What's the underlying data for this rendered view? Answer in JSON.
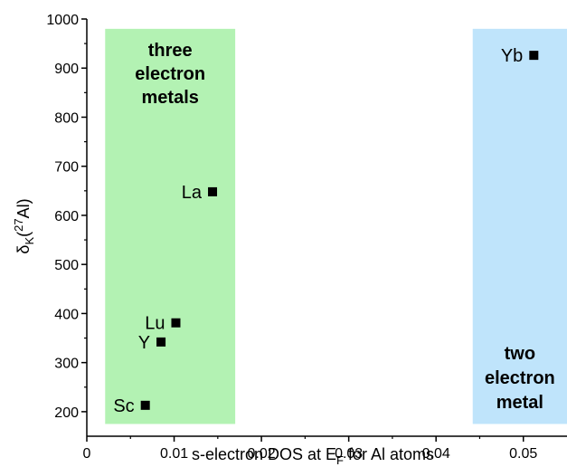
{
  "chart_data": {
    "type": "scatter",
    "title": "",
    "xlabel": "s-electron DOS at E_F for Al atoms",
    "ylabel": "δ_K(^27Al)",
    "xlim": [
      0,
      0.055
    ],
    "ylim": [
      150,
      1000
    ],
    "xticks": [
      0,
      0.01,
      0.02,
      0.03,
      0.04,
      0.05
    ],
    "xtick_labels": [
      "0",
      "0.01",
      "0.02",
      "0.03",
      "0.04",
      "0.05"
    ],
    "yticks": [
      200,
      300,
      400,
      500,
      600,
      700,
      800,
      900,
      1000
    ],
    "ytick_labels": [
      "200",
      "300",
      "400",
      "500",
      "600",
      "700",
      "800",
      "900",
      "1000"
    ],
    "grid": false,
    "points": [
      {
        "label": "Sc",
        "x": 0.0067,
        "y": 213
      },
      {
        "label": "Y",
        "x": 0.0085,
        "y": 342
      },
      {
        "label": "Lu",
        "x": 0.0102,
        "y": 381
      },
      {
        "label": "La",
        "x": 0.0144,
        "y": 648
      },
      {
        "label": "Yb",
        "x": 0.0512,
        "y": 926
      }
    ],
    "regions": [
      {
        "lines": [
          "three",
          "electron",
          "metals"
        ],
        "x_range": [
          0.0021,
          0.017
        ],
        "y_range": [
          175,
          980
        ],
        "color": "#b3f2b3"
      },
      {
        "lines": [
          "two",
          "electron",
          "metal"
        ],
        "x_range": [
          0.0442,
          0.055
        ],
        "y_range": [
          175,
          980
        ],
        "color": "#bfe4fb"
      }
    ],
    "marker_color": "#000000"
  }
}
